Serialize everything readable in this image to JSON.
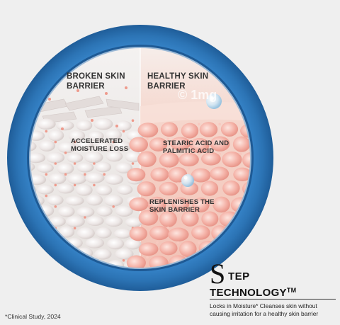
{
  "diagram": {
    "left_title_1": "BROKEN SKIN",
    "left_title_2": "BARRIER",
    "right_title_1": "HEALTHY SKIN",
    "right_title_2": "BARRIER",
    "left_callout_1": "ACCELERATED",
    "left_callout_2": "MOISTURE LOSS",
    "right_callout_a1": "STEARIC ACID AND",
    "right_callout_a2": "PALMITIC ACID",
    "right_callout_b1": "REPLENISHES THE",
    "right_callout_b2": "SKIN BARRIER",
    "watermark": "© 1mg"
  },
  "branding": {
    "big_letter": "S",
    "rest_first_word": "TEP",
    "second_word": "TECHNOLOGY",
    "trademark": "TM",
    "description": "Locks in Moisture* Cleanses skin without causing irritation for a healthy skin barrier"
  },
  "footnote": "*Clinical Study, 2024",
  "colors": {
    "background": "#efefef",
    "ring": "#2c74b5",
    "left_panel": "#ece9e6",
    "right_panel": "#f7d6cc",
    "cell_left": "#f2eded",
    "cell_right": "#f4b4aa"
  }
}
